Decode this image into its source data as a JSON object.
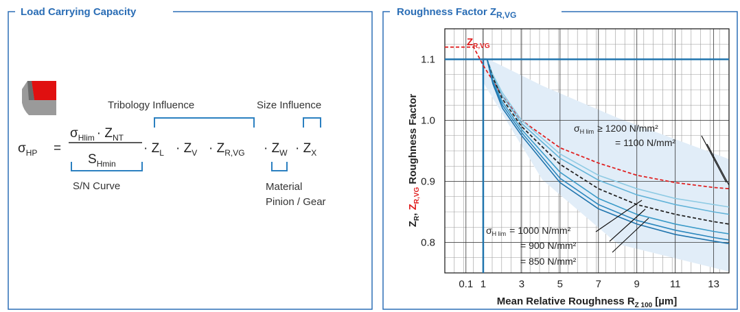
{
  "panels": {
    "left_title": "Load Carrying Capacity"
  },
  "formula": {
    "lhs": {
      "main": "σ",
      "sub": "HP"
    },
    "equals": "=",
    "numerator": [
      {
        "main": "σ",
        "sub": "Hlim"
      },
      {
        "main": "· Z",
        "sub": "NT"
      }
    ],
    "denominator": {
      "main": "S",
      "sub": "Hmin"
    },
    "terms": [
      {
        "main": "· Z",
        "sub": "L"
      },
      {
        "main": "· Z",
        "sub": "V"
      },
      {
        "main": "· Z",
        "sub": "R,VG"
      },
      {
        "main": "· Z",
        "sub": "W"
      },
      {
        "main": "· Z",
        "sub": "X"
      }
    ],
    "labels": {
      "tribology": "Tribology Influence",
      "size": "Size Influence",
      "sn": "S/N Curve",
      "material": "Material",
      "pinion": "Pinion / Gear"
    }
  },
  "chart_data": {
    "type": "line",
    "title": "Roughness Factor Z",
    "title_sub": "R,VG",
    "x_label": "Mean Relative Roughness R",
    "x_label_sub": "Z 100",
    "x_label_unit": "[µm]",
    "y_label": [
      {
        "main": "Z",
        "sub": "R"
      },
      {
        "main": ", "
      },
      {
        "main": "Z",
        "sub": "R,VG"
      },
      {
        "main": " Roughness Factor"
      }
    ],
    "xlim": [
      -1,
      13.8
    ],
    "ylim": [
      0.75,
      1.15
    ],
    "xticks": [
      0.1,
      1,
      3,
      5,
      7,
      9,
      11,
      13
    ],
    "yticks": [
      0.8,
      0.9,
      {
        "value": 1,
        "label": "1.0"
      },
      1.1
    ],
    "grid": true,
    "ref_lines": {
      "x": 1,
      "y": 1.1,
      "color": "#1f74ad"
    },
    "x": [
      -1,
      0.5,
      1,
      1.2,
      1.5,
      2,
      3,
      5,
      7,
      9,
      11,
      13,
      13.8
    ],
    "series": [
      {
        "color": "#e02020",
        "dash": true,
        "values": [
          1.12,
          1.12,
          1.09,
          1.08,
          1.065,
          1.04,
          1.0,
          0.955,
          0.93,
          0.91,
          0.898,
          0.89,
          0.888
        ]
      },
      {
        "color": "#8fcbe4",
        "dash": false,
        "values": [
          null,
          null,
          null,
          1.1,
          1.075,
          1.045,
          1.0,
          0.945,
          0.91,
          0.888,
          0.872,
          0.862,
          0.858
        ]
      },
      {
        "color": "#62b3d8",
        "dash": false,
        "values": [
          null,
          null,
          null,
          1.1,
          1.072,
          1.04,
          0.995,
          0.938,
          0.902,
          0.878,
          0.862,
          0.85,
          0.846
        ]
      },
      {
        "color": "#222222",
        "dash": true,
        "values": [
          null,
          null,
          null,
          1.1,
          1.07,
          1.035,
          0.99,
          0.928,
          0.888,
          0.862,
          0.846,
          0.834,
          0.83
        ]
      },
      {
        "color": "#3a9ac8",
        "dash": false,
        "values": [
          null,
          null,
          null,
          1.1,
          1.065,
          1.03,
          0.985,
          0.915,
          0.872,
          0.846,
          0.83,
          0.818,
          0.814
        ]
      },
      {
        "color": "#2a86bd",
        "dash": false,
        "values": [
          null,
          null,
          null,
          1.1,
          1.062,
          1.025,
          0.98,
          0.905,
          0.862,
          0.836,
          0.82,
          0.808,
          0.804
        ]
      },
      {
        "color": "#1f74ad",
        "dash": false,
        "values": [
          null,
          null,
          null,
          1.1,
          1.06,
          1.02,
          0.975,
          0.898,
          0.855,
          0.83,
          0.813,
          0.802,
          0.798
        ]
      }
    ],
    "red_label": {
      "main": "Z",
      "sub": "R,VG"
    },
    "annotations": [
      {
        "main": "σ",
        "sub": "H lim",
        "text": "≥ 1200 N/mm²"
      },
      {
        "text": "= 1100 N/mm²"
      },
      {
        "main": "σ",
        "sub": "H lim",
        "text": "= 1000 N/mm²"
      },
      {
        "text": "= 900 N/mm²"
      },
      {
        "text": "= 850 N/mm²"
      }
    ]
  }
}
